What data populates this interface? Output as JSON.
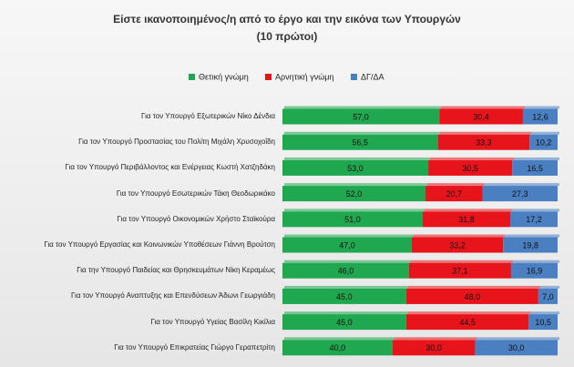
{
  "chart_data": {
    "type": "stacked-bar-horizontal",
    "title": "Είστε ικανοποιημένος/η  από το έργο και την εικόνα των Υπουργών",
    "subtitle": "(10 πρώτοι)",
    "categories": [
      "Για τον Υπουργό Εξωτερικών Νίκο Δένδια",
      "Για τον Υπουργό Προστασίας του Πολίτη Μιχάλη Χρυσοχοΐδη",
      "Για τον Υπουργό Περιβάλλοντος και Ενέργειας Κωστή Χατζηδάκη",
      "Για τον Υπουργό Εσωτερικών Τάκη Θεοδωρικάκο",
      "Για τον Υπουργό Οικονομικών Χρήστο Σταϊκούρα",
      "Για τον Υπουργό Εργασίας και Κοινωνικών Υποθέσεων Γιάννη Βρούτση",
      "Για την Υπουργό Παιδείας και Θρησκευμάτων Νίκη Κεραμέως",
      "Για τον Υπουργό Αναπτυξης και Επενδύσεων Άδωνι Γεωργιάδη",
      "Για τον Υπουργό Υγείας Βασίλη Κικίλια",
      "Για τον Υπουργό Επικρατείας Γιώργο Γεραπετρίτη"
    ],
    "series": [
      {
        "name": "Θετική γνώμη",
        "color": "#1fa84f",
        "values": [
          57.0,
          56.5,
          53.0,
          52.0,
          51.0,
          47.0,
          46.0,
          45.0,
          45.0,
          40.0
        ],
        "value_labels": [
          "57,0",
          "56,5",
          "53,0",
          "52,0",
          "51,0",
          "47,0",
          "46,0",
          "45,0",
          "45,0",
          "40,0"
        ]
      },
      {
        "name": "Αρνητική γνώμη",
        "color": "#e8141b",
        "values": [
          30.4,
          33.3,
          30.5,
          20.7,
          31.8,
          33.2,
          37.1,
          48.0,
          44.5,
          30.0
        ],
        "value_labels": [
          "30,4",
          "33,3",
          "30,5",
          "20,7",
          "31,8",
          "33,2",
          "37,1",
          "48,0",
          "44,5",
          "30,0"
        ]
      },
      {
        "name": "ΔΓ/ΔΑ",
        "color": "#4a7fc1",
        "values": [
          12.6,
          10.2,
          16.5,
          27.3,
          17.2,
          19.8,
          16.9,
          7.0,
          10.5,
          30.0
        ],
        "value_labels": [
          "12,6",
          "10,2",
          "16,5",
          "27,3",
          "17,2",
          "19,8",
          "16,9",
          "7,0",
          "10,5",
          "30,0"
        ]
      }
    ]
  }
}
